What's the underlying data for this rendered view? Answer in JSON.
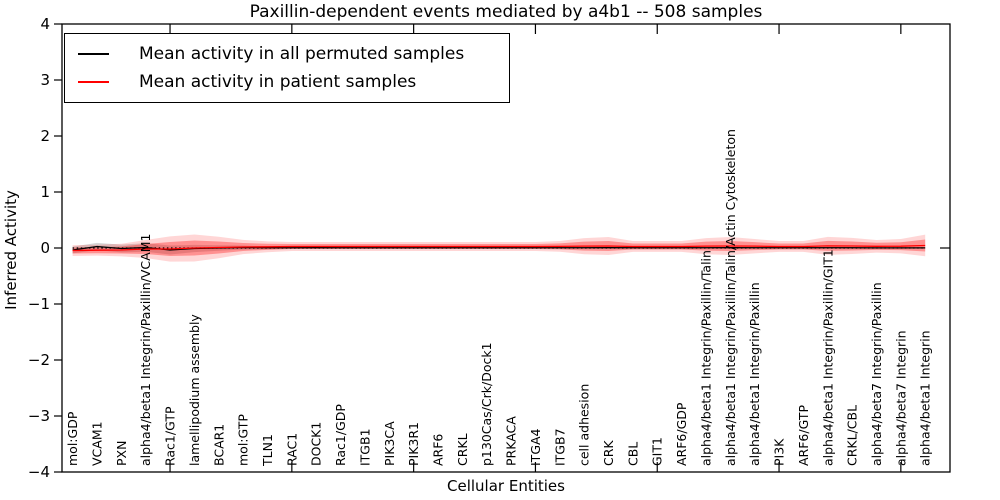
{
  "figure": {
    "title": "Paxillin-dependent events mediated by a4b1 -- 508 samples",
    "xlabel": "Cellular Entities",
    "ylabel": "Inferred Activity"
  },
  "legend": {
    "items": [
      {
        "label": "Mean activity in all permuted samples",
        "color": "#000000"
      },
      {
        "label": "Mean activity in patient samples",
        "color": "#ff0000"
      }
    ]
  },
  "chart_data": {
    "type": "line",
    "title": "Paxillin-dependent events mediated by a4b1 -- 508 samples",
    "xlabel": "Cellular Entities",
    "ylabel": "Inferred Activity",
    "ylim": [
      -4,
      4
    ],
    "yticks": [
      4,
      3,
      2,
      1,
      0,
      -1,
      -2,
      -3,
      -4
    ],
    "ytick_labels": [
      "4",
      "3",
      "2",
      "1",
      "0",
      "−1",
      "−2",
      "−3",
      "−4"
    ],
    "grid": false,
    "legend_position": "upper left",
    "zero_line": {
      "y": 0,
      "style": "dotted",
      "color": "#000000"
    },
    "xtick_entity_indices": [
      4,
      9,
      14,
      19,
      24,
      29,
      34
    ],
    "categories": [
      "mol:GDP",
      "VCAM1",
      "PXN",
      "alpha4/beta1 Integrin/Paxillin/VCAM1",
      "Rac1/GTP",
      "lamellipodium assembly",
      "BCAR1",
      "mol:GTP",
      "TLN1",
      "RAC1",
      "DOCK1",
      "Rac1/GDP",
      "ITGB1",
      "PIK3CA",
      "PIK3R1",
      "ARF6",
      "CRKL",
      "p130Cas/Crk/Dock1",
      "PRKACA",
      "ITGA4",
      "ITGB7",
      "cell adhesion",
      "CRK",
      "CBL",
      "GIT1",
      "ARF6/GDP",
      "alpha4/beta1 Integrin/Paxillin/Talin",
      "alpha4/beta1 Integrin/Paxillin/Talin/Actin Cytoskeleton",
      "alpha4/beta1 Integrin/Paxillin",
      "PI3K",
      "ARF6/GTP",
      "alpha4/beta1 Integrin/Paxillin/GIT1",
      "CRKL/CBL",
      "alpha4/beta7 Integrin/Paxillin",
      "alpha4/beta7 Integrin",
      "alpha4/beta1 Integrin"
    ],
    "series": [
      {
        "name": "Mean activity in all permuted samples",
        "color": "#000000",
        "values": [
          -0.036,
          0.027,
          -0.009,
          0.009,
          -0.036,
          -0.009,
          0.0,
          0.009,
          0.004,
          0.004,
          0.006,
          0.004,
          0.004,
          0.005,
          0.004,
          0.005,
          0.004,
          0.004,
          0.005,
          0.004,
          0.004,
          0.005,
          0.006,
          0.004,
          0.004,
          0.004,
          0.005,
          0.006,
          0.005,
          0.004,
          0.004,
          0.005,
          0.004,
          0.002,
          0.002,
          0.002
        ]
      },
      {
        "name": "Mean activity in patient samples",
        "color": "#ff0000",
        "values": [
          -0.045,
          -0.039,
          -0.036,
          -0.018,
          -0.018,
          0.0,
          0.009,
          0.018,
          0.021,
          0.027,
          0.027,
          0.027,
          0.027,
          0.027,
          0.027,
          0.027,
          0.027,
          0.027,
          0.027,
          0.027,
          0.029,
          0.033,
          0.036,
          0.027,
          0.027,
          0.027,
          0.033,
          0.036,
          0.033,
          0.027,
          0.027,
          0.038,
          0.036,
          0.03,
          0.032,
          0.045
        ]
      }
    ],
    "bands": [
      {
        "name": "permuted-spread",
        "series": 0,
        "color": "#999999",
        "opacity": 0.4,
        "halfwidths": [
          0.06,
          0.065,
          0.07,
          0.075,
          0.08,
          0.065,
          0.05,
          0.035,
          0.025,
          0.018,
          0.012,
          0.01,
          0.01,
          0.01,
          0.01,
          0.01,
          0.01,
          0.01,
          0.01,
          0.01,
          0.01,
          0.01,
          0.01,
          0.01,
          0.01,
          0.01,
          0.01,
          0.01,
          0.01,
          0.01,
          0.01,
          0.01,
          0.01,
          0.01,
          0.01,
          0.01
        ]
      },
      {
        "name": "patient-spread-outer",
        "series": 1,
        "color": "#ff0000",
        "opacity": 0.16,
        "halfwidths": [
          0.097,
          0.097,
          0.113,
          0.16,
          0.225,
          0.241,
          0.193,
          0.128,
          0.097,
          0.081,
          0.081,
          0.081,
          0.081,
          0.081,
          0.081,
          0.081,
          0.081,
          0.081,
          0.081,
          0.081,
          0.097,
          0.144,
          0.16,
          0.097,
          0.097,
          0.097,
          0.144,
          0.16,
          0.128,
          0.097,
          0.097,
          0.16,
          0.144,
          0.113,
          0.128,
          0.193
        ]
      },
      {
        "name": "patient-spread-inner",
        "series": 1,
        "color": "#ff0000",
        "opacity": 0.32,
        "halfwidths": [
          0.054,
          0.054,
          0.063,
          0.089,
          0.125,
          0.134,
          0.107,
          0.071,
          0.054,
          0.045,
          0.045,
          0.045,
          0.045,
          0.045,
          0.045,
          0.045,
          0.045,
          0.045,
          0.045,
          0.045,
          0.054,
          0.08,
          0.089,
          0.054,
          0.054,
          0.054,
          0.08,
          0.089,
          0.071,
          0.054,
          0.054,
          0.089,
          0.08,
          0.063,
          0.071,
          0.107
        ]
      }
    ]
  }
}
